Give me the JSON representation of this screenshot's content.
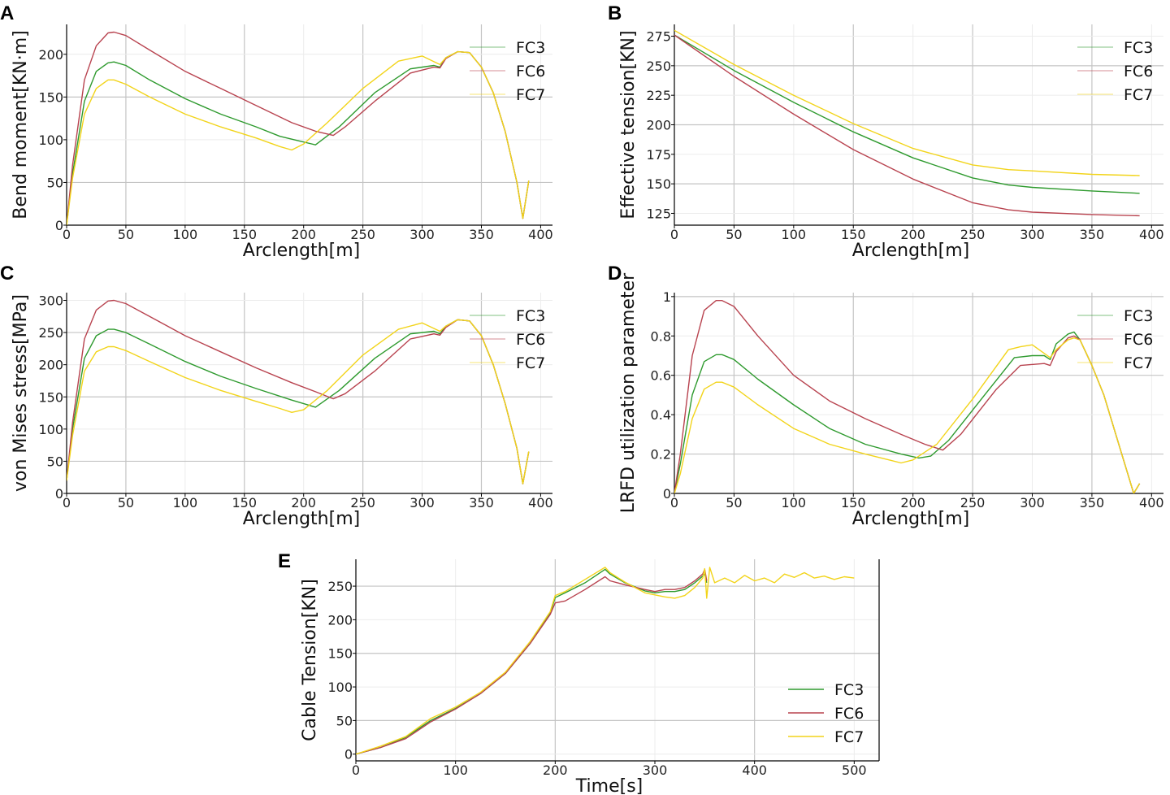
{
  "chart_data": [
    {
      "id": "A",
      "type": "line",
      "panel_label": "A",
      "xlabel": "Arclength[m]",
      "ylabel": "Bend moment[KN·m]",
      "xlim": [
        0,
        410
      ],
      "ylim": [
        0,
        235
      ],
      "xticks": [
        0,
        50,
        100,
        150,
        200,
        250,
        300,
        350,
        400
      ],
      "yticks": [
        0,
        50,
        100,
        150,
        200
      ],
      "legend_position": "top-right",
      "series": [
        {
          "name": "FC3",
          "color": "#2e9a2e",
          "x": [
            0,
            5,
            15,
            25,
            35,
            40,
            50,
            70,
            100,
            130,
            160,
            180,
            195,
            210,
            230,
            260,
            290,
            310,
            315,
            320,
            330,
            340,
            350,
            360,
            370,
            380,
            385,
            390
          ],
          "y": [
            0,
            60,
            145,
            180,
            190,
            191,
            187,
            170,
            148,
            130,
            115,
            104,
            99,
            94,
            115,
            155,
            183,
            187,
            185,
            196,
            203,
            202,
            185,
            155,
            110,
            50,
            8,
            52
          ]
        },
        {
          "name": "FC6",
          "color": "#b8434f",
          "x": [
            0,
            5,
            15,
            25,
            35,
            40,
            50,
            70,
            100,
            130,
            160,
            190,
            210,
            225,
            235,
            260,
            290,
            310,
            315,
            320,
            330,
            340,
            350,
            360,
            370,
            380,
            385,
            390
          ],
          "y": [
            0,
            70,
            170,
            210,
            225,
            226,
            222,
            205,
            180,
            160,
            140,
            120,
            110,
            105,
            115,
            145,
            178,
            185,
            184,
            195,
            203,
            202,
            185,
            155,
            110,
            50,
            8,
            52
          ]
        },
        {
          "name": "FC7",
          "color": "#f2d41a",
          "x": [
            0,
            5,
            15,
            25,
            35,
            40,
            50,
            70,
            100,
            130,
            160,
            180,
            190,
            200,
            220,
            250,
            280,
            300,
            315,
            320,
            330,
            340,
            350,
            360,
            370,
            380,
            385,
            390
          ],
          "y": [
            0,
            55,
            130,
            160,
            170,
            170,
            165,
            150,
            130,
            115,
            102,
            92,
            88,
            95,
            120,
            160,
            192,
            198,
            188,
            196,
            203,
            202,
            185,
            155,
            110,
            50,
            8,
            52
          ]
        }
      ]
    },
    {
      "id": "B",
      "type": "line",
      "panel_label": "B",
      "xlabel": "Arclength[m]",
      "ylabel": "Effective tension[KN]",
      "xlim": [
        0,
        410
      ],
      "ylim": [
        115,
        285
      ],
      "xticks": [
        0,
        50,
        100,
        150,
        200,
        250,
        300,
        350,
        400
      ],
      "yticks": [
        125,
        150,
        175,
        200,
        225,
        250,
        275
      ],
      "legend_position": "top-right",
      "series": [
        {
          "name": "FC3",
          "color": "#2e9a2e",
          "x": [
            0,
            50,
            100,
            150,
            200,
            250,
            280,
            300,
            350,
            390
          ],
          "y": [
            276,
            246,
            219,
            194,
            172,
            155,
            149,
            147,
            144,
            142
          ]
        },
        {
          "name": "FC6",
          "color": "#b8434f",
          "x": [
            0,
            50,
            100,
            150,
            200,
            250,
            280,
            300,
            350,
            390
          ],
          "y": [
            276,
            241,
            209,
            179,
            154,
            134,
            128,
            126,
            124,
            123
          ]
        },
        {
          "name": "FC7",
          "color": "#f2d41a",
          "x": [
            0,
            50,
            100,
            150,
            200,
            250,
            280,
            300,
            350,
            390
          ],
          "y": [
            280,
            251,
            225,
            201,
            180,
            166,
            162,
            161,
            158,
            157
          ]
        }
      ]
    },
    {
      "id": "C",
      "type": "line",
      "panel_label": "C",
      "xlabel": "Arclength[m]",
      "ylabel": "von Mises stress[MPa]",
      "xlim": [
        0,
        410
      ],
      "ylim": [
        0,
        312
      ],
      "xticks": [
        0,
        50,
        100,
        150,
        200,
        250,
        300,
        350,
        400
      ],
      "yticks": [
        0,
        50,
        100,
        150,
        200,
        250,
        300
      ],
      "legend_position": "top-right",
      "series": [
        {
          "name": "FC3",
          "color": "#2e9a2e",
          "x": [
            0,
            5,
            15,
            25,
            35,
            40,
            50,
            70,
            100,
            130,
            160,
            190,
            210,
            230,
            260,
            290,
            310,
            315,
            320,
            330,
            340,
            350,
            360,
            370,
            380,
            385,
            390
          ],
          "y": [
            20,
            100,
            210,
            245,
            255,
            255,
            250,
            232,
            205,
            182,
            163,
            145,
            134,
            160,
            210,
            248,
            252,
            248,
            260,
            270,
            268,
            245,
            200,
            140,
            70,
            15,
            65
          ]
        },
        {
          "name": "FC6",
          "color": "#b8434f",
          "x": [
            0,
            5,
            15,
            25,
            35,
            40,
            50,
            70,
            100,
            130,
            160,
            190,
            210,
            225,
            235,
            260,
            290,
            310,
            315,
            320,
            330,
            340,
            350,
            360,
            370,
            380,
            385,
            390
          ],
          "y": [
            20,
            110,
            240,
            285,
            299,
            300,
            295,
            275,
            245,
            220,
            195,
            172,
            158,
            147,
            155,
            190,
            240,
            248,
            246,
            258,
            270,
            268,
            245,
            200,
            140,
            70,
            15,
            65
          ]
        },
        {
          "name": "FC7",
          "color": "#f2d41a",
          "x": [
            0,
            5,
            15,
            25,
            35,
            40,
            50,
            70,
            100,
            130,
            160,
            180,
            190,
            200,
            220,
            250,
            280,
            300,
            315,
            320,
            330,
            340,
            350,
            360,
            370,
            380,
            385,
            390
          ],
          "y": [
            20,
            90,
            190,
            220,
            228,
            228,
            222,
            205,
            180,
            160,
            143,
            132,
            126,
            130,
            160,
            215,
            255,
            265,
            252,
            260,
            270,
            268,
            245,
            200,
            140,
            70,
            15,
            65
          ]
        }
      ]
    },
    {
      "id": "D",
      "type": "line",
      "panel_label": "D",
      "xlabel": "Arclength[m]",
      "ylabel": "LRFD utilization parameter",
      "xlim": [
        0,
        410
      ],
      "ylim": [
        0,
        1.02
      ],
      "xticks": [
        0,
        50,
        100,
        150,
        200,
        250,
        300,
        350,
        400
      ],
      "yticks": [
        0.0,
        0.2,
        0.4,
        0.6,
        0.8,
        1.0
      ],
      "legend_position": "top-right",
      "series": [
        {
          "name": "FC3",
          "color": "#2e9a2e",
          "x": [
            0,
            5,
            15,
            25,
            35,
            40,
            50,
            70,
            100,
            130,
            160,
            190,
            205,
            215,
            230,
            260,
            285,
            300,
            310,
            315,
            320,
            330,
            335,
            340,
            350,
            360,
            370,
            380,
            385,
            390
          ],
          "y": [
            0,
            0.15,
            0.5,
            0.67,
            0.705,
            0.705,
            0.68,
            0.58,
            0.45,
            0.33,
            0.25,
            0.2,
            0.18,
            0.19,
            0.27,
            0.5,
            0.69,
            0.7,
            0.7,
            0.68,
            0.76,
            0.81,
            0.82,
            0.78,
            0.65,
            0.5,
            0.3,
            0.1,
            0.0,
            0.05
          ]
        },
        {
          "name": "FC6",
          "color": "#b8434f",
          "x": [
            0,
            5,
            15,
            25,
            35,
            40,
            50,
            70,
            100,
            130,
            160,
            190,
            210,
            225,
            240,
            270,
            290,
            310,
            315,
            320,
            330,
            335,
            340,
            350,
            360,
            370,
            380,
            385,
            390
          ],
          "y": [
            0,
            0.2,
            0.7,
            0.93,
            0.98,
            0.98,
            0.95,
            0.8,
            0.6,
            0.47,
            0.38,
            0.3,
            0.25,
            0.22,
            0.3,
            0.53,
            0.65,
            0.66,
            0.65,
            0.72,
            0.79,
            0.8,
            0.78,
            0.65,
            0.5,
            0.3,
            0.1,
            0.0,
            0.05
          ]
        },
        {
          "name": "FC7",
          "color": "#f2d41a",
          "x": [
            0,
            5,
            15,
            25,
            35,
            40,
            50,
            70,
            100,
            130,
            160,
            180,
            190,
            200,
            220,
            250,
            280,
            290,
            300,
            315,
            320,
            330,
            335,
            340,
            350,
            360,
            370,
            380,
            385,
            390
          ],
          "y": [
            0,
            0.1,
            0.38,
            0.53,
            0.565,
            0.565,
            0.54,
            0.45,
            0.33,
            0.25,
            0.2,
            0.17,
            0.155,
            0.17,
            0.25,
            0.48,
            0.73,
            0.745,
            0.755,
            0.69,
            0.73,
            0.78,
            0.79,
            0.78,
            0.65,
            0.5,
            0.3,
            0.1,
            0.0,
            0.05
          ]
        }
      ]
    },
    {
      "id": "E",
      "type": "line",
      "panel_label": "E",
      "xlabel": "Time[s]",
      "ylabel": "Cable Tension[KN]",
      "xlim": [
        0,
        525
      ],
      "ylim": [
        -10,
        290
      ],
      "xticks": [
        0,
        100,
        200,
        300,
        400,
        500
      ],
      "yticks": [
        0,
        50,
        100,
        150,
        200,
        250
      ],
      "legend_position": "bottom-right",
      "series": [
        {
          "name": "FC3",
          "color": "#2e9a2e",
          "x": [
            0,
            25,
            50,
            75,
            100,
            125,
            150,
            175,
            195,
            200,
            210,
            230,
            250,
            255,
            270,
            290,
            300,
            310,
            320,
            330,
            340,
            348,
            350,
            352
          ],
          "y": [
            0,
            10,
            25,
            50,
            68,
            90,
            120,
            165,
            210,
            233,
            240,
            255,
            275,
            268,
            255,
            243,
            240,
            242,
            242,
            245,
            255,
            265,
            268,
            255
          ]
        },
        {
          "name": "FC6",
          "color": "#b8434f",
          "x": [
            0,
            25,
            50,
            75,
            100,
            125,
            150,
            175,
            195,
            200,
            210,
            230,
            250,
            255,
            270,
            290,
            300,
            310,
            320,
            330,
            340,
            348,
            350,
            352
          ],
          "y": [
            0,
            10,
            23,
            48,
            67,
            90,
            120,
            165,
            208,
            225,
            228,
            245,
            264,
            258,
            252,
            245,
            242,
            245,
            245,
            248,
            258,
            268,
            275,
            258
          ]
        },
        {
          "name": "FC7",
          "color": "#f2d41a",
          "x": [
            0,
            25,
            50,
            75,
            100,
            125,
            150,
            175,
            195,
            200,
            210,
            230,
            250,
            255,
            270,
            290,
            300,
            310,
            320,
            330,
            340,
            348,
            350,
            352,
            355,
            360,
            370,
            380,
            390,
            400,
            410,
            420,
            430,
            440,
            450,
            460,
            470,
            480,
            490,
            500
          ],
          "y": [
            0,
            12,
            26,
            53,
            70,
            92,
            122,
            168,
            212,
            236,
            242,
            260,
            278,
            270,
            256,
            240,
            237,
            234,
            232,
            236,
            248,
            262,
            276,
            232,
            278,
            255,
            262,
            255,
            266,
            258,
            262,
            255,
            268,
            263,
            270,
            262,
            265,
            260,
            264,
            262
          ]
        }
      ]
    }
  ]
}
